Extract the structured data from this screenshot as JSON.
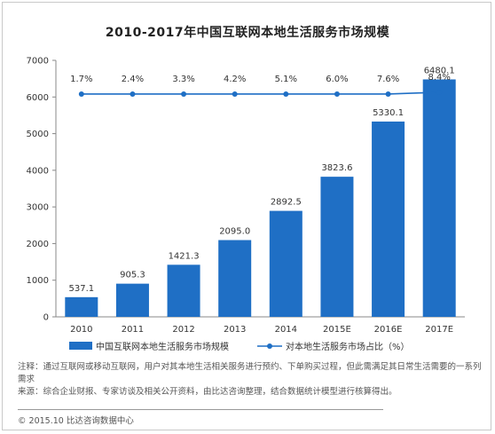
{
  "chart_data": {
    "type": "bar+line",
    "title": "2010-2017年中国互联网本地生活服务市场规模",
    "categories": [
      "2010",
      "2011",
      "2012",
      "2013",
      "2014",
      "2015E",
      "2016E",
      "2017E"
    ],
    "series": [
      {
        "name": "中国互联网本地生活服务市场规模",
        "type": "bar",
        "values": [
          537.1,
          905.3,
          1421.3,
          2095.0,
          2892.5,
          3823.6,
          5330.1,
          6480.1
        ],
        "value_labels": [
          "537.1",
          "905.3",
          "1421.3",
          "2095.0",
          "2892.5",
          "3823.6",
          "5330.1",
          "6480.1"
        ],
        "color": "#1f6fc5"
      },
      {
        "name": "对本地生活服务市场占比（%）",
        "type": "line",
        "values": [
          1.7,
          2.4,
          3.3,
          4.2,
          5.1,
          6.0,
          7.6,
          8.4
        ],
        "value_labels": [
          "1.7%",
          "2.4%",
          "3.3%",
          "4.2%",
          "5.1%",
          "6.0%",
          "7.6%",
          "8.4%"
        ],
        "color": "#1f6fc5"
      }
    ],
    "ylim": [
      0,
      7000
    ],
    "yticks": [
      "0",
      "1000",
      "2000",
      "3000",
      "4000",
      "5000",
      "6000",
      "7000"
    ],
    "legend_position": "bottom",
    "grid": false
  },
  "notes": {
    "note": "注释：通过互联网或移动互联网，用户对其本地生活相关服务进行预约、下单购买过程，但此需满足其日常生活需要的一系列需求",
    "source": "来源：综合企业财报、专家访谈及相关公开资料，由比达咨询整理，结合数据统计模型进行核算得出。"
  },
  "footer": "© 2015.10  比达咨询数据中心"
}
